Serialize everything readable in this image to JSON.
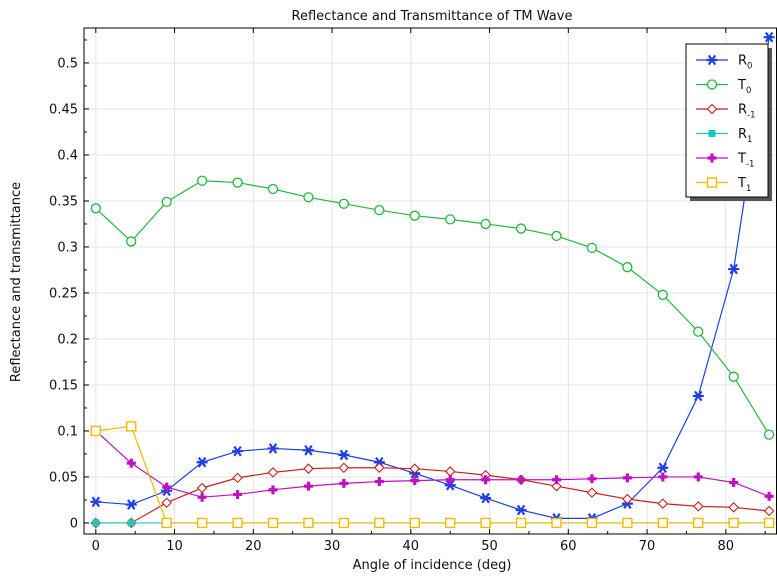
{
  "chart_data": {
    "type": "line",
    "title": "Reflectance and Transmittance of TM Wave",
    "xlabel": "Angle of incidence (deg)",
    "ylabel": "Reflectance and transmittance",
    "xlim": [
      -1.5,
      86.5
    ],
    "ylim": [
      -0.012,
      0.538
    ],
    "x_ticks": [
      0,
      10,
      20,
      30,
      40,
      50,
      60,
      70,
      80
    ],
    "y_ticks": [
      0,
      0.05,
      0.1,
      0.15,
      0.2,
      0.25,
      0.3,
      0.35,
      0.4,
      0.45,
      0.5
    ],
    "x_tick_labels": [
      "0",
      "10",
      "20",
      "30",
      "40",
      "50",
      "60",
      "70",
      "80"
    ],
    "y_tick_labels": [
      "0",
      "0.05",
      "0.1",
      "0.15",
      "0.2",
      "0.25",
      "0.3",
      "0.35",
      "0.4",
      "0.45",
      "0.5"
    ],
    "grid": true,
    "legend_position": "top-right",
    "x": [
      0,
      4.5,
      9,
      13.5,
      18,
      22.5,
      27,
      31.5,
      36,
      40.5,
      45,
      49.5,
      54,
      58.5,
      63,
      67.5,
      72,
      76.5,
      81,
      85.5
    ],
    "series": [
      {
        "name": "R",
        "subscript": "0",
        "color": "#1f3fe6",
        "marker": "asterisk",
        "values": [
          0.023,
          0.02,
          0.035,
          0.066,
          0.078,
          0.081,
          0.079,
          0.074,
          0.066,
          0.054,
          0.041,
          0.027,
          0.014,
          0.005,
          0.005,
          0.021,
          0.06,
          0.138,
          0.276,
          0.528
        ]
      },
      {
        "name": "T",
        "subscript": "0",
        "color": "#22b83b",
        "marker": "circle",
        "values": [
          0.342,
          0.306,
          0.349,
          0.372,
          0.37,
          0.363,
          0.354,
          0.347,
          0.34,
          0.334,
          0.33,
          0.325,
          0.32,
          0.312,
          0.299,
          0.278,
          0.248,
          0.208,
          0.159,
          0.096
        ]
      },
      {
        "name": "R",
        "subscript": "-1",
        "color": "#cc1f1f",
        "marker": "diamond",
        "values": [
          0,
          0,
          0.022,
          0.038,
          0.049,
          0.055,
          0.059,
          0.06,
          0.06,
          0.059,
          0.056,
          0.052,
          0.047,
          0.04,
          0.033,
          0.026,
          0.021,
          0.018,
          0.017,
          0.013
        ]
      },
      {
        "name": "R",
        "subscript": "1",
        "color": "#1fc6c6",
        "marker": "square-filled",
        "values": [
          0,
          0,
          0,
          0,
          0,
          0,
          0,
          0,
          0,
          0,
          0,
          0,
          0,
          0,
          0,
          0,
          0,
          0,
          0,
          0
        ]
      },
      {
        "name": "T",
        "subscript": "-1",
        "color": "#c011c0",
        "marker": "plus",
        "values": [
          0.1,
          0.065,
          0.039,
          0.028,
          0.031,
          0.036,
          0.04,
          0.043,
          0.045,
          0.046,
          0.047,
          0.047,
          0.047,
          0.047,
          0.048,
          0.049,
          0.05,
          0.05,
          0.044,
          0.029
        ]
      },
      {
        "name": "T",
        "subscript": "1",
        "color": "#f5b800",
        "marker": "square",
        "values": [
          0.1,
          0.105,
          0,
          0,
          0,
          0,
          0,
          0,
          0,
          0,
          0,
          0,
          0,
          0,
          0,
          0,
          0,
          0,
          0,
          0
        ]
      }
    ]
  }
}
